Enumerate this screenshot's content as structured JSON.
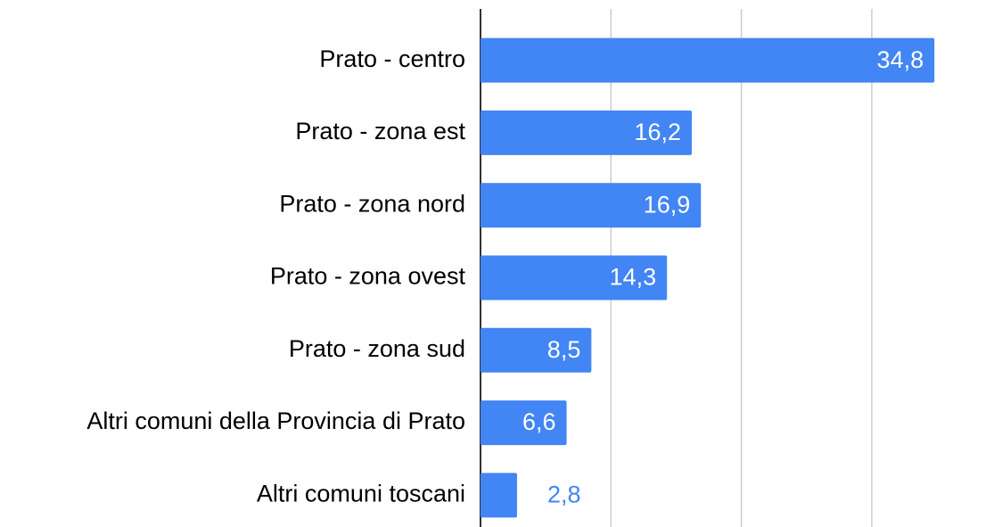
{
  "chart_data": {
    "type": "bar",
    "orientation": "horizontal",
    "categories": [
      "Prato - centro",
      "Prato - zona est",
      "Prato - zona nord",
      "Prato - zona ovest",
      "Prato - zona sud",
      "Altri comuni della Provincia di Prato",
      "Altri comuni toscani"
    ],
    "values": [
      34.8,
      16.2,
      16.9,
      14.3,
      8.5,
      6.6,
      2.8
    ],
    "value_labels": [
      "34,8",
      "16,2",
      "16,9",
      "14,3",
      "8,5",
      "6,6",
      "2,8"
    ],
    "color": "#4285f4",
    "xlim": [
      0,
      38
    ],
    "xticks": [
      0,
      10,
      20,
      30
    ],
    "grid": true
  }
}
